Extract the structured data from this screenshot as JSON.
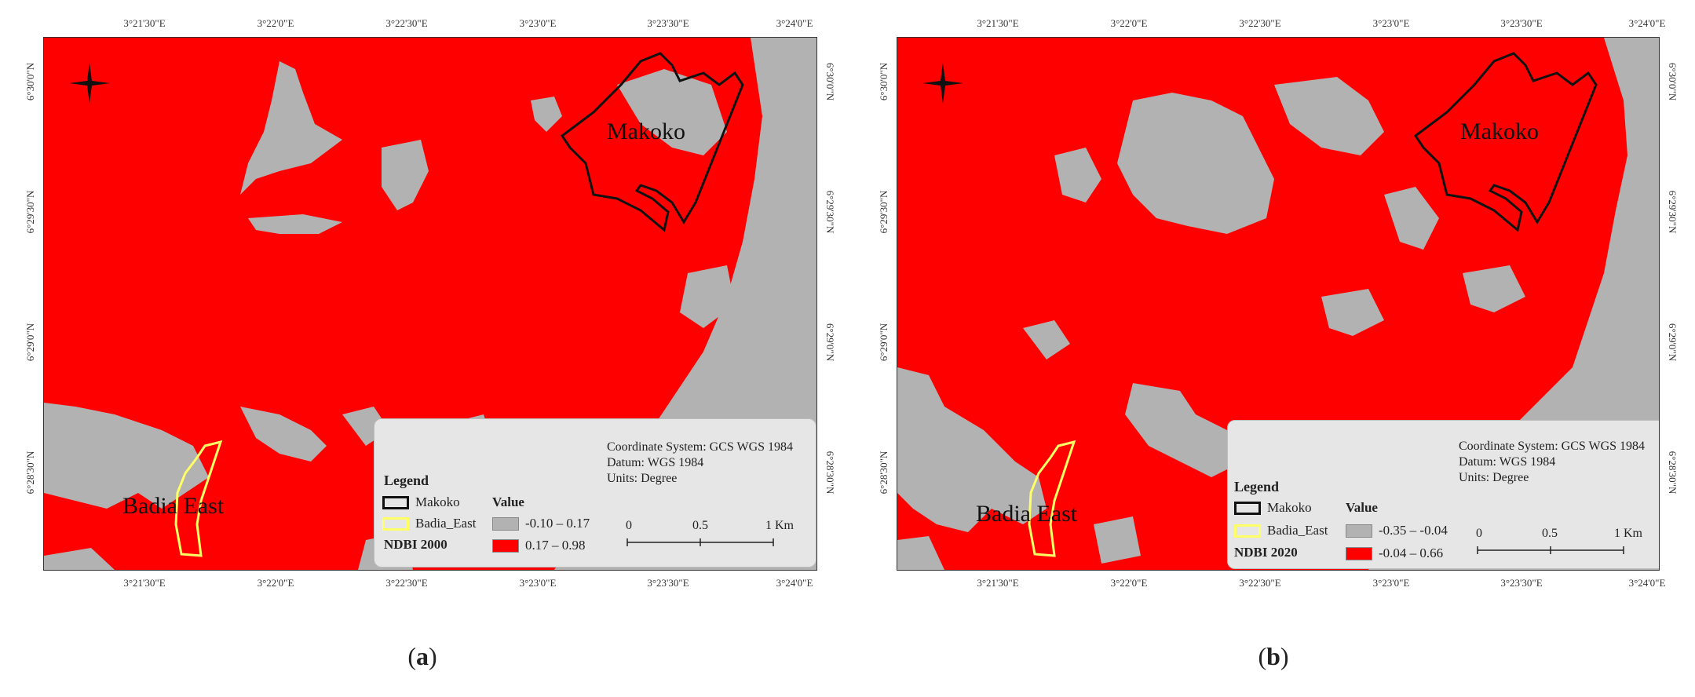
{
  "panels": [
    {
      "id": "a",
      "label_open": "(",
      "label_letter": "a",
      "label_close": ")",
      "map_labels": {
        "north": "Makoko",
        "south": "Badia East"
      },
      "legend": {
        "title": "Legend",
        "area1": "Makoko",
        "area2": "Badia_East",
        "value_heading": "Value",
        "index_name": "NDBI 2000",
        "class_low": "-0.10 – 0.17",
        "class_high": "0.17 – 0.98",
        "coord_system": "Coordinate System: GCS WGS 1984",
        "datum": "Datum: WGS 1984",
        "units": "Units: Degree",
        "scale": [
          "0",
          "0.5",
          "1 Km"
        ]
      }
    },
    {
      "id": "b",
      "label_open": "(",
      "label_letter": "b",
      "label_close": ")",
      "map_labels": {
        "north": "Makoko",
        "south": "Badia East"
      },
      "legend": {
        "title": "Legend",
        "area1": "Makoko",
        "area2": "Badia_East",
        "value_heading": "Value",
        "index_name": "NDBI 2020",
        "class_low": "-0.35 – -0.04",
        "class_high": "-0.04 – 0.66",
        "coord_system": "Coordinate System: GCS WGS 1984",
        "datum": "Datum: WGS 1984",
        "units": "Units: Degree",
        "scale": [
          "0",
          "0.5",
          "1 Km"
        ]
      }
    }
  ],
  "x_ticks": [
    "3°21'30\"E",
    "3°22'0\"E",
    "3°22'30\"E",
    "3°23'0\"E",
    "3°23'30\"E",
    "3°24'0\"E"
  ],
  "y_ticks": [
    "6°30'0\"N",
    "6°29'30\"N",
    "6°29'0\"N",
    "6°28'30\"N"
  ],
  "colors": {
    "built_up": "#ff0000",
    "non_built": "#b2b2b2",
    "makoko_outline": "#111111",
    "badia_outline": "#ffff66"
  }
}
